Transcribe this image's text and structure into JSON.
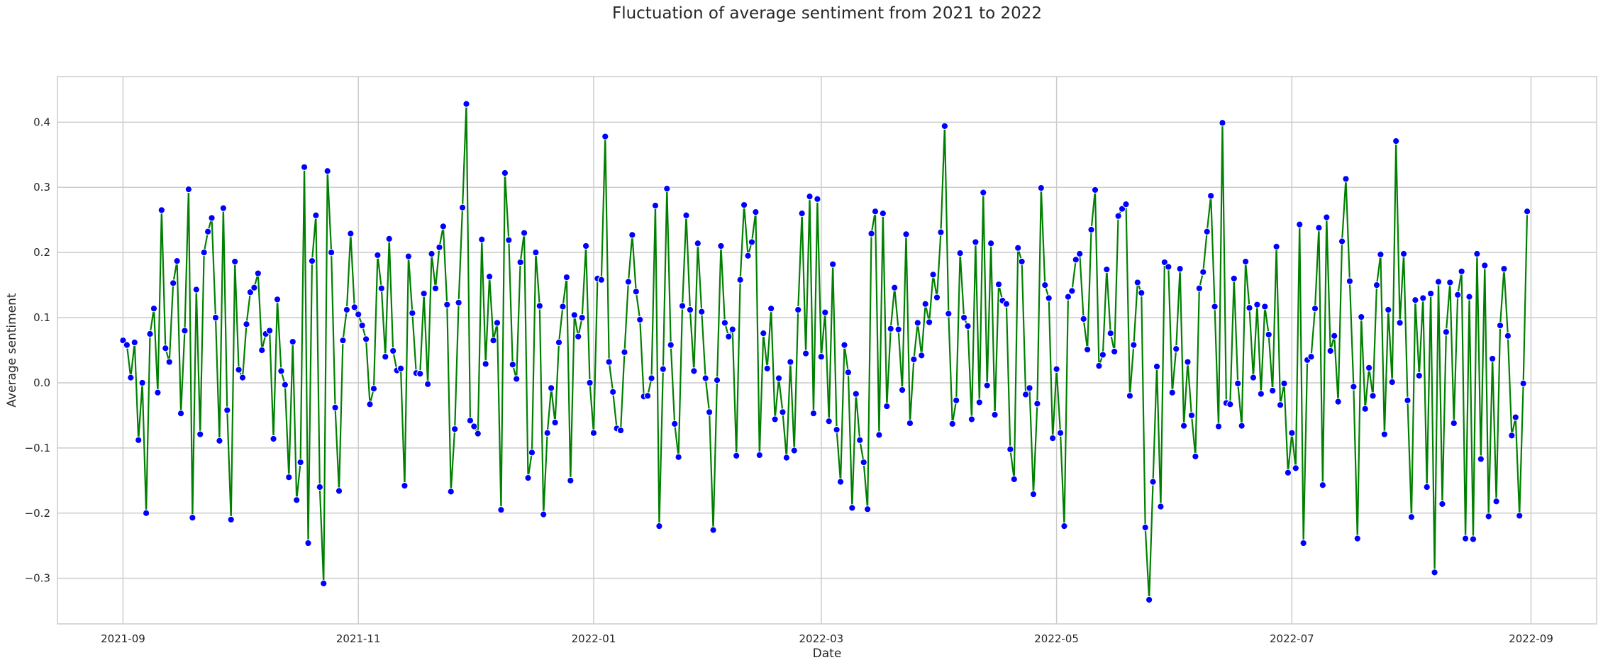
{
  "chart_data": {
    "type": "line",
    "title": "Fluctuation of average sentiment from 2021 to 2022",
    "xlabel": "Date",
    "ylabel": "Average sentiment",
    "grid": true,
    "legend": "none",
    "ylim": [
      -0.37,
      0.47
    ],
    "xlim": [
      "2021-08-15",
      "2022-09-18"
    ],
    "x_ticks": [
      "2021-09",
      "2021-11",
      "2022-01",
      "2022-03",
      "2022-05",
      "2022-07",
      "2022-09"
    ],
    "y_ticks": [
      -0.3,
      -0.2,
      -0.1,
      0.0,
      0.1,
      0.2,
      0.3,
      0.4
    ],
    "y_tick_labels": [
      "−0.3",
      "−0.2",
      "−0.1",
      "0.0",
      "0.1",
      "0.2",
      "0.3",
      "0.4"
    ],
    "line_color": "#008000",
    "marker_color": "#0000ff",
    "marker_edge_color": "#ffffff",
    "series": [
      {
        "start": "2021-09-01",
        "end": "2022-08-31",
        "values": [
          0.065,
          0.058,
          0.008,
          0.062,
          -0.088,
          0.0,
          -0.2,
          0.075,
          0.114,
          -0.015,
          0.265,
          0.053,
          0.032,
          0.153,
          0.187,
          -0.047,
          0.08,
          0.297,
          -0.207,
          0.143,
          -0.079,
          0.2,
          0.232,
          0.253,
          0.1,
          -0.089,
          0.268,
          -0.042,
          -0.21,
          0.186,
          0.02,
          0.008,
          0.09,
          0.139,
          0.146,
          0.168,
          0.05,
          0.075,
          0.08,
          -0.086,
          0.128,
          0.018,
          -0.003,
          -0.145,
          0.063,
          -0.18,
          -0.122,
          0.331,
          -0.246,
          0.187,
          0.257,
          -0.16,
          -0.308,
          0.325,
          0.2,
          -0.038,
          -0.166,
          0.065,
          0.112,
          0.229,
          0.116,
          0.105,
          0.088,
          0.067,
          -0.033,
          -0.009,
          0.196,
          0.145,
          0.04,
          0.221,
          0.049,
          0.019,
          0.022,
          -0.158,
          0.194,
          0.107,
          0.015,
          0.014,
          0.137,
          -0.002,
          0.198,
          0.145,
          0.208,
          0.24,
          0.12,
          -0.167,
          -0.071,
          0.123,
          0.269,
          0.428,
          -0.058,
          -0.067,
          -0.078,
          0.22,
          0.029,
          0.163,
          0.065,
          0.092,
          -0.195,
          0.322,
          0.219,
          0.028,
          0.006,
          0.185,
          0.23,
          -0.146,
          -0.107,
          0.2,
          0.118,
          -0.202,
          -0.077,
          -0.008,
          -0.061,
          0.062,
          0.117,
          0.162,
          -0.15,
          0.104,
          0.071,
          0.1,
          0.21,
          0.0,
          -0.077,
          0.16,
          0.158,
          0.378,
          0.032,
          -0.014,
          -0.07,
          -0.073,
          0.047,
          0.155,
          0.227,
          0.14,
          0.097,
          -0.021,
          -0.02,
          0.007,
          0.272,
          -0.22,
          0.021,
          0.298,
          0.058,
          -0.063,
          -0.114,
          0.118,
          0.257,
          0.112,
          0.018,
          0.214,
          0.109,
          0.007,
          -0.045,
          -0.226,
          0.004,
          0.21,
          0.092,
          0.071,
          0.082,
          -0.112,
          0.158,
          0.273,
          0.195,
          0.216,
          0.262,
          -0.111,
          0.076,
          0.022,
          0.114,
          -0.056,
          0.007,
          -0.045,
          -0.115,
          0.032,
          -0.104,
          0.112,
          0.26,
          0.045,
          0.286,
          -0.047,
          0.282,
          0.04,
          0.108,
          -0.059,
          0.182,
          -0.072,
          -0.152,
          0.058,
          0.016,
          -0.192,
          -0.017,
          -0.088,
          -0.122,
          -0.194,
          0.229,
          0.263,
          -0.08,
          0.26,
          -0.036,
          0.083,
          0.146,
          0.082,
          -0.011,
          0.228,
          -0.062,
          0.036,
          0.092,
          0.042,
          0.121,
          0.093,
          0.166,
          0.131,
          0.231,
          0.394,
          0.106,
          -0.063,
          -0.027,
          0.199,
          0.1,
          0.087,
          -0.056,
          0.216,
          -0.03,
          0.292,
          -0.004,
          0.214,
          -0.049,
          0.151,
          0.126,
          0.121,
          -0.102,
          -0.148,
          0.207,
          0.186,
          -0.018,
          -0.008,
          -0.171,
          -0.032,
          0.299,
          0.15,
          0.13,
          -0.085,
          0.021,
          -0.077,
          -0.22,
          0.132,
          0.141,
          0.189,
          0.198,
          0.098,
          0.051,
          0.235,
          0.296,
          0.026,
          0.043,
          0.174,
          0.076,
          0.048,
          0.256,
          0.267,
          0.274,
          -0.02,
          0.058,
          0.154,
          0.138,
          -0.222,
          -0.333,
          -0.152,
          0.025,
          -0.19,
          0.185,
          0.178,
          -0.015,
          0.052,
          0.175,
          -0.066,
          0.032,
          -0.05,
          -0.113,
          0.145,
          0.17,
          0.232,
          0.287,
          0.117,
          -0.067,
          0.399,
          -0.031,
          -0.033,
          0.16,
          -0.001,
          -0.066,
          0.186,
          0.115,
          0.008,
          0.12,
          -0.017,
          0.117,
          0.074,
          -0.012,
          0.209,
          -0.034,
          -0.001,
          -0.138,
          -0.077,
          -0.131,
          0.243,
          -0.246,
          0.035,
          0.04,
          0.114,
          0.238,
          -0.157,
          0.254,
          0.049,
          0.072,
          -0.029,
          0.217,
          0.313,
          0.156,
          -0.006,
          -0.239,
          0.101,
          -0.04,
          0.023,
          -0.02,
          0.15,
          0.197,
          -0.079,
          0.112,
          0.001,
          0.371,
          0.092,
          0.198,
          -0.027,
          -0.206,
          0.127,
          0.011,
          0.13,
          -0.16,
          0.137,
          -0.291,
          0.155,
          -0.186,
          0.078,
          0.154,
          -0.062,
          0.135,
          0.171,
          -0.239,
          0.132,
          -0.24,
          0.198,
          -0.117,
          0.18,
          -0.205,
          0.037,
          -0.182,
          0.088,
          0.175,
          0.072,
          -0.081,
          -0.053,
          -0.204,
          -0.001,
          0.263
        ]
      }
    ]
  }
}
